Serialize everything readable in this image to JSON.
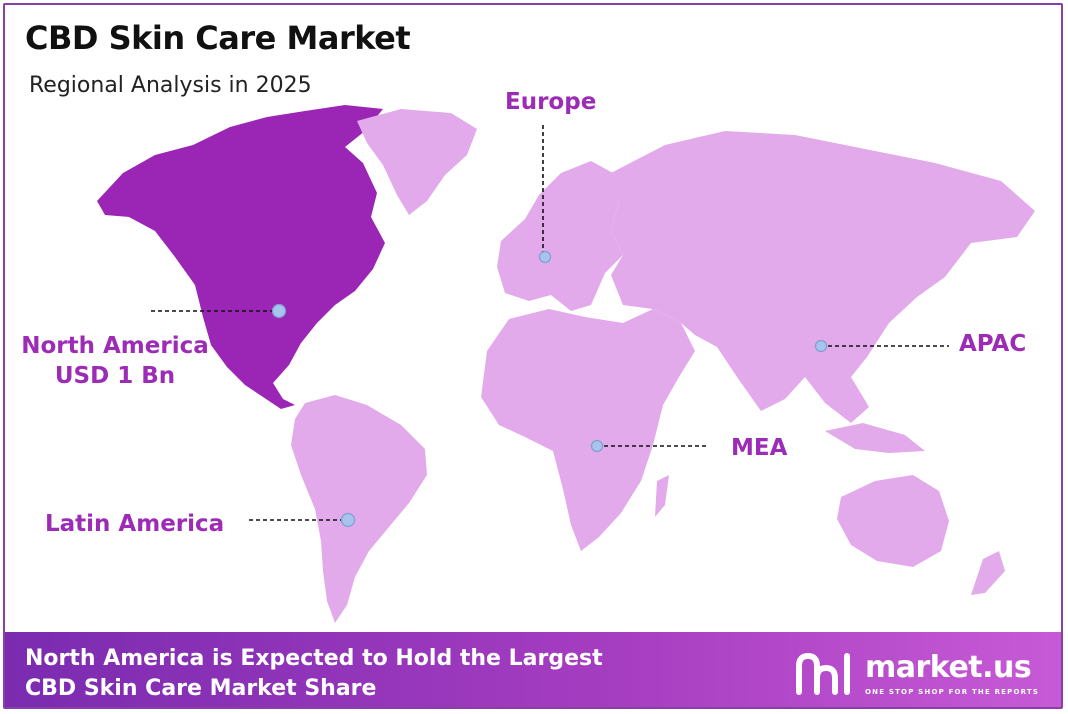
{
  "header": {
    "title": "CBD Skin Care Market",
    "subtitle": "Regional Analysis in 2025"
  },
  "regions": {
    "north_america": {
      "name": "North America",
      "value": "USD 1 Bn"
    },
    "europe": {
      "name": "Europe"
    },
    "apac": {
      "name": "APAC"
    },
    "mea": {
      "name": "MEA"
    },
    "latin_america": {
      "name": "Latin America"
    }
  },
  "footer": {
    "line1": "North America is Expected to Hold the Largest",
    "line2": "CBD Skin Care Market Share"
  },
  "brand": {
    "name": "market.us",
    "tagline": "ONE STOP SHOP FOR THE REPORTS"
  },
  "colors": {
    "highlight_region": "#9b26b6",
    "other_regions": "#e2aaea",
    "label": "#9c2bb5",
    "marker": "#a9c4ec",
    "footer_gradient_start": "#7a2bb0",
    "footer_gradient_end": "#c75ad6"
  }
}
